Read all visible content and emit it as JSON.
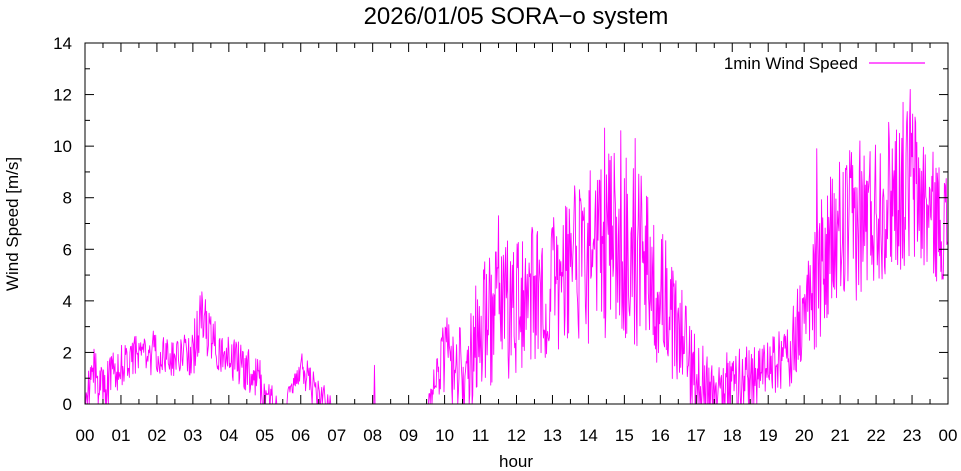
{
  "chart_data": {
    "type": "line",
    "title": "2026/01/05 SORA−o system",
    "xlabel": "hour",
    "ylabel": "Wind Speed [m/s]",
    "xlim": [
      0,
      24
    ],
    "ylim": [
      0,
      14
    ],
    "grid": false,
    "legend_position": "top-right",
    "x_ticks": [
      "00",
      "01",
      "02",
      "03",
      "04",
      "05",
      "06",
      "07",
      "08",
      "09",
      "10",
      "11",
      "12",
      "13",
      "14",
      "15",
      "16",
      "17",
      "18",
      "19",
      "20",
      "21",
      "22",
      "23",
      "00"
    ],
    "y_ticks": [
      "0",
      "2",
      "4",
      "6",
      "8",
      "10",
      "12",
      "14"
    ],
    "series": [
      {
        "name": "1min Wind Speed",
        "color": "#ff00ff",
        "sampling": "approximate hourly envelope of 1-minute values",
        "x": [
          0,
          0.25,
          0.5,
          1,
          1.5,
          2,
          2.5,
          3,
          3.25,
          3.5,
          4,
          4.5,
          5,
          5.5,
          6,
          6.5,
          7,
          7.5,
          8,
          8.5,
          9,
          9.5,
          10,
          10.5,
          11,
          11.5,
          12,
          12.5,
          13,
          13.5,
          14,
          14.5,
          15,
          15.5,
          16,
          16.5,
          17,
          17.5,
          18,
          18.5,
          19,
          19.5,
          20,
          20.5,
          21,
          21.5,
          22,
          22.5,
          23,
          23.5,
          24
        ],
        "mean": [
          0.3,
          1.2,
          0.6,
          1.6,
          1.9,
          2.0,
          1.7,
          2.1,
          3.3,
          2.4,
          1.8,
          1.4,
          0.7,
          0,
          1.4,
          0.5,
          0,
          0,
          0,
          0,
          0,
          0,
          2.0,
          1.2,
          3.0,
          3.6,
          3.9,
          4.3,
          4.5,
          5.2,
          5.8,
          6.3,
          6.1,
          5.5,
          4.3,
          2.8,
          1.2,
          0.7,
          0.9,
          1.2,
          1.4,
          1.8,
          3.4,
          5.3,
          6.6,
          7.0,
          7.6,
          8.3,
          8.5,
          7.4,
          6.8
        ],
        "amp": [
          0.4,
          0.8,
          0.6,
          0.7,
          0.6,
          0.7,
          0.5,
          0.8,
          0.9,
          0.8,
          0.6,
          0.7,
          0.6,
          0,
          0.5,
          0.5,
          0,
          0,
          0,
          0,
          0,
          0,
          1.2,
          1.3,
          1.8,
          2.2,
          2.1,
          2.0,
          2.2,
          2.4,
          2.7,
          2.9,
          2.8,
          2.7,
          2.2,
          1.6,
          1.1,
          0.9,
          0.9,
          0.9,
          0.8,
          1.0,
          1.5,
          2.1,
          2.4,
          2.3,
          2.3,
          2.4,
          2.6,
          2.0,
          1.7
        ],
        "spikes": [
          {
            "x": 3.2,
            "y": 4.2
          },
          {
            "x": 8.05,
            "y": 1.5
          },
          {
            "x": 11.5,
            "y": 7.3
          },
          {
            "x": 14.45,
            "y": 10.7
          },
          {
            "x": 14.9,
            "y": 10.6
          },
          {
            "x": 15.3,
            "y": 10.3
          },
          {
            "x": 16.7,
            "y": 3.8
          },
          {
            "x": 20.35,
            "y": 9.9
          },
          {
            "x": 21.55,
            "y": 10.2
          },
          {
            "x": 22.75,
            "y": 11.7
          },
          {
            "x": 22.95,
            "y": 12.2
          }
        ]
      }
    ]
  }
}
